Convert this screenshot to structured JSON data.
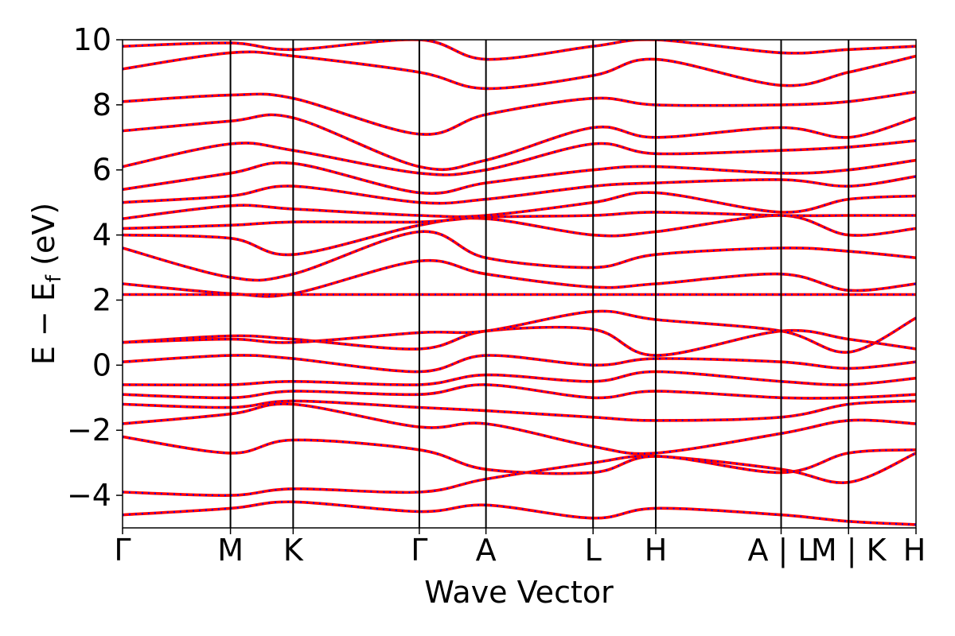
{
  "chart_data": {
    "type": "line",
    "xlabel": "Wave Vector",
    "ylabel_main": "E − E",
    "ylabel_sub": "f",
    "ylabel_unit": "(eV)",
    "ylim": [
      -5,
      10
    ],
    "yticks": [
      -4,
      -2,
      0,
      2,
      4,
      6,
      8,
      10
    ],
    "ytick_labels": [
      "−4",
      "−2",
      "0",
      "2",
      "4",
      "6",
      "8",
      "10"
    ],
    "xlim": [
      0,
      1
    ],
    "kpoint_positions": [
      0,
      0.136,
      0.215,
      0.374,
      0.458,
      0.593,
      0.672,
      0.83,
      0.915,
      1.0
    ],
    "kpoint_labels": [
      {
        "text": "Γ",
        "x": 0
      },
      {
        "text": "M",
        "x": 0.136
      },
      {
        "text": "K",
        "x": 0.215
      },
      {
        "text": "Γ",
        "x": 0.374
      },
      {
        "text": "A",
        "x": 0.458
      },
      {
        "text": "L",
        "x": 0.593
      },
      {
        "text": "H",
        "x": 0.672
      },
      {
        "text": "A | L",
        "x": 0.83
      },
      {
        "text": "M | K",
        "x": 0.915
      },
      {
        "text": "H",
        "x": 1.0
      }
    ],
    "colors": {
      "series_a": "#ff0000",
      "series_b": "#0000ff"
    },
    "bands": [
      [
        -4.6,
        -4.4,
        -4.2,
        -4.5,
        -4.3,
        -4.7,
        -4.4,
        -4.6,
        -4.8,
        -4.9
      ],
      [
        -3.9,
        -4.0,
        -3.8,
        -3.9,
        -3.5,
        -3.0,
        -2.8,
        -3.2,
        -3.6,
        -2.7
      ],
      [
        -2.2,
        -2.7,
        -2.3,
        -2.6,
        -3.2,
        -3.3,
        -2.8,
        -3.3,
        -2.7,
        -2.6
      ],
      [
        -1.8,
        -1.5,
        -1.2,
        -1.9,
        -1.8,
        -2.5,
        -2.7,
        -2.1,
        -1.7,
        -1.8
      ],
      [
        -1.2,
        -1.3,
        -1.1,
        -1.3,
        -1.4,
        -1.6,
        -1.7,
        -1.6,
        -1.2,
        -1.1
      ],
      [
        -0.9,
        -1.0,
        -0.8,
        -0.9,
        -0.6,
        -1.0,
        -0.8,
        -1.0,
        -1.0,
        -0.9
      ],
      [
        -0.6,
        -0.6,
        -0.5,
        -0.6,
        -0.3,
        -0.5,
        -0.2,
        -0.5,
        -0.6,
        -0.4
      ],
      [
        0.1,
        0.3,
        0.2,
        -0.2,
        0.3,
        0.0,
        0.2,
        0.1,
        -0.1,
        0.1
      ],
      [
        0.7,
        0.9,
        0.8,
        0.5,
        1.05,
        1.1,
        0.3,
        1.05,
        0.8,
        0.5
      ],
      [
        0.7,
        0.8,
        0.7,
        1.0,
        1.05,
        1.65,
        1.4,
        1.05,
        0.4,
        1.45
      ],
      [
        2.17,
        2.17,
        2.17,
        2.17,
        2.17,
        2.17,
        2.17,
        2.17,
        2.17,
        2.17
      ],
      [
        2.5,
        2.2,
        2.2,
        3.2,
        2.8,
        2.4,
        2.5,
        2.8,
        2.3,
        2.5
      ],
      [
        3.6,
        2.7,
        2.8,
        4.1,
        3.3,
        3.0,
        3.4,
        3.6,
        3.5,
        3.3
      ],
      [
        4.0,
        3.9,
        3.4,
        4.3,
        4.5,
        4.0,
        4.1,
        4.6,
        4.0,
        4.2
      ],
      [
        4.2,
        4.3,
        4.4,
        4.4,
        4.55,
        4.6,
        4.7,
        4.6,
        4.6,
        4.6
      ],
      [
        4.5,
        4.9,
        4.8,
        4.6,
        4.6,
        5.0,
        5.3,
        4.7,
        5.1,
        5.2
      ],
      [
        5.0,
        5.2,
        5.5,
        5.0,
        5.1,
        5.5,
        5.6,
        5.7,
        5.5,
        5.8
      ],
      [
        5.4,
        5.9,
        6.2,
        5.3,
        5.6,
        6.0,
        6.1,
        5.9,
        6.0,
        6.3
      ],
      [
        6.1,
        6.8,
        6.6,
        5.9,
        6.0,
        6.8,
        6.5,
        6.6,
        6.7,
        6.9
      ],
      [
        7.2,
        7.5,
        7.6,
        6.1,
        6.3,
        7.3,
        7.0,
        7.3,
        7.0,
        7.6
      ],
      [
        8.1,
        8.3,
        8.2,
        7.1,
        7.7,
        8.2,
        8.0,
        8.0,
        8.1,
        8.4
      ],
      [
        9.1,
        9.6,
        9.5,
        9.0,
        8.5,
        8.9,
        9.4,
        8.6,
        9.0,
        9.5
      ],
      [
        9.8,
        9.9,
        9.7,
        10.0,
        9.4,
        9.8,
        10.0,
        9.6,
        9.7,
        9.8
      ]
    ]
  }
}
